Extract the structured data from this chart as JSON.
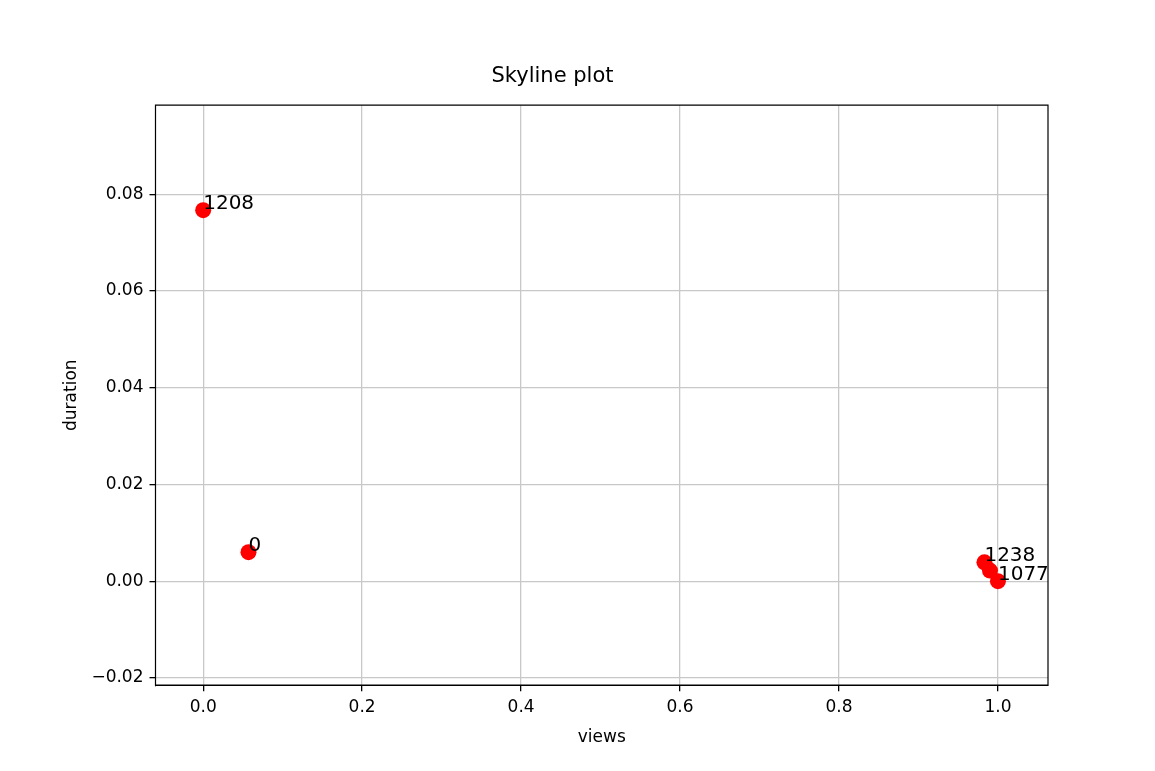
{
  "chart_data": {
    "type": "scatter",
    "title": "Skyline plot",
    "xlabel": "views",
    "ylabel": "duration",
    "x": [
      0,
      0.057,
      0.983,
      0.99,
      1.0
    ],
    "series": [
      {
        "color": "#ff0000",
        "values": [
          0.0767,
          0.006,
          0.0039,
          0.0022,
          0.0
        ]
      }
    ],
    "annotations": [
      {
        "text": "1208",
        "x": 0,
        "y": 0.0767
      },
      {
        "text": "0",
        "x": 0.057,
        "y": 0.006
      },
      {
        "text": "1238",
        "x": 0.983,
        "y": 0.0039
      },
      {
        "text": "1077",
        "x": 1.0,
        "y": 0.0
      }
    ],
    "xlim": [
      -0.06,
      1.063
    ],
    "ylim": [
      -0.0215,
      0.0984
    ],
    "xticks": [
      {
        "value": 0,
        "label": "0.0"
      },
      {
        "value": 0.2,
        "label": "0.2"
      },
      {
        "value": 0.4,
        "label": "0.4"
      },
      {
        "value": 0.6,
        "label": "0.6"
      },
      {
        "value": 0.8,
        "label": "0.8"
      },
      {
        "value": 1.0,
        "label": "1.0"
      }
    ],
    "yticks": [
      {
        "value": -0.02,
        "label": "−0.02"
      },
      {
        "value": 0,
        "label": "0.00"
      },
      {
        "value": 0.02,
        "label": "0.02"
      },
      {
        "value": 0.04,
        "label": "0.04"
      },
      {
        "value": 0.06,
        "label": "0.06"
      },
      {
        "value": 0.08,
        "label": "0.08"
      }
    ],
    "grid": true,
    "marker": "circle",
    "legend": false
  }
}
